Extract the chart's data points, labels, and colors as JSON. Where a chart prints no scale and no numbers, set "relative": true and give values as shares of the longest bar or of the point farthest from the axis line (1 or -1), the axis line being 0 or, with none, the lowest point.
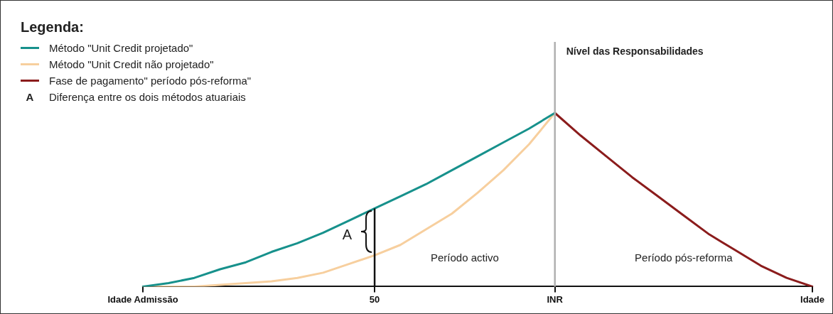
{
  "chart_data": {
    "type": "line",
    "relative": true,
    "legend_title": "Legenda:",
    "legend": "top left",
    "marker": "none",
    "grid": false,
    "categories": [
      "Idade Admissão",
      null,
      null,
      null,
      null,
      null,
      null,
      null,
      null,
      "50",
      null,
      null,
      null,
      null,
      null,
      null,
      "INR",
      null,
      null,
      null,
      null,
      null,
      null,
      null,
      null,
      null,
      "Idade"
    ],
    "series": [
      {
        "name": "Método \"Unit Credit projetado\"",
        "color": "#17918c",
        "values": [
          0,
          0.02,
          0.05,
          0.1,
          0.14,
          0.2,
          0.25,
          0.31,
          0.38,
          0.45,
          0.52,
          0.59,
          0.67,
          0.75,
          0.83,
          0.91,
          1,
          null,
          null,
          null,
          null,
          null,
          null,
          null,
          null,
          null,
          null
        ]
      },
      {
        "name": "Método \"Unit Credit não projetado\"",
        "color": "#f7cf9e",
        "values": [
          0,
          0,
          0,
          0.01,
          0.02,
          0.03,
          0.05,
          0.08,
          0.13,
          0.18,
          0.24,
          0.33,
          0.42,
          0.54,
          0.67,
          0.82,
          1,
          null,
          null,
          null,
          null,
          null,
          null,
          null,
          null,
          null,
          null
        ]
      },
      {
        "name": "Fase de pagamento\" período pós-reforma\"",
        "color": "#8b1c1c",
        "values": [
          null,
          null,
          null,
          null,
          null,
          null,
          null,
          null,
          null,
          null,
          null,
          null,
          null,
          null,
          null,
          null,
          1,
          0.87,
          0.75,
          0.63,
          0.52,
          0.41,
          0.3,
          0.21,
          0.12,
          0.05,
          0
        ]
      }
    ],
    "ref_lines": [
      {
        "axis": "x",
        "value": "50",
        "color": "#111111"
      },
      {
        "axis": "x",
        "value": "INR",
        "label": "Nível das Responsabilidades",
        "color": "#b0b0b0"
      }
    ],
    "annotations": [
      {
        "text": "A",
        "x": "50",
        "y": 0.31
      },
      "Diferença entre os dois métodos atuariais",
      "Período activo",
      "Período pós-reforma"
    ]
  }
}
